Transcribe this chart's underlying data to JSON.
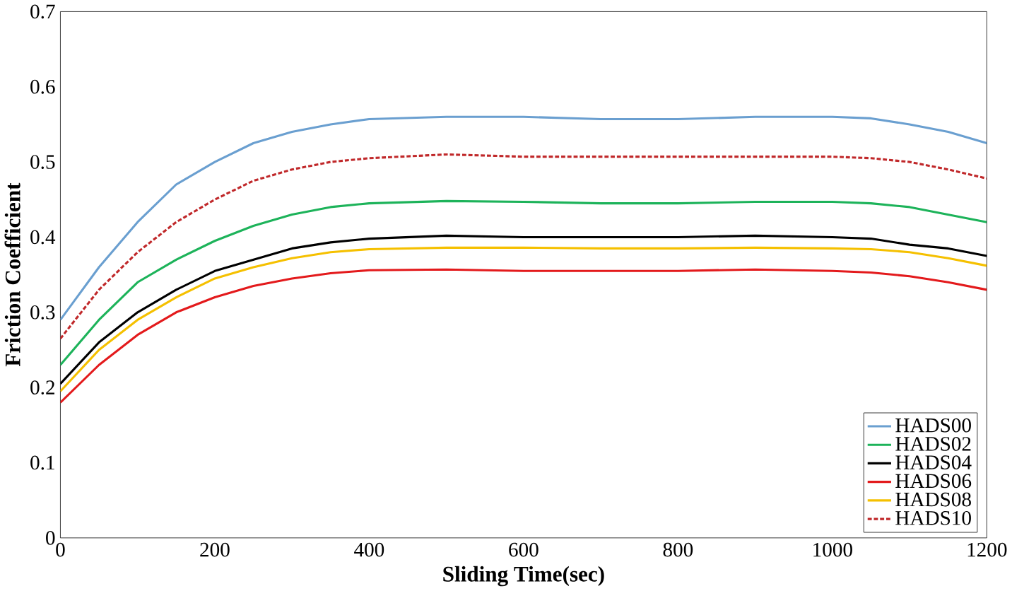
{
  "chart_data": {
    "type": "line",
    "xlabel": "Sliding Time(sec)",
    "ylabel": "Friction Coefficient",
    "x": [
      0,
      50,
      100,
      150,
      200,
      250,
      300,
      350,
      400,
      500,
      600,
      700,
      800,
      900,
      1000,
      1050,
      1100,
      1150,
      1200
    ],
    "series": [
      {
        "name": "HADS00",
        "color": "#6a9fd0",
        "values": [
          0.29,
          0.36,
          0.42,
          0.47,
          0.5,
          0.525,
          0.54,
          0.55,
          0.557,
          0.56,
          0.56,
          0.557,
          0.557,
          0.56,
          0.56,
          0.558,
          0.55,
          0.54,
          0.525
        ]
      },
      {
        "name": "HADS02",
        "color": "#1db35a",
        "values": [
          0.23,
          0.29,
          0.34,
          0.37,
          0.395,
          0.415,
          0.43,
          0.44,
          0.445,
          0.448,
          0.447,
          0.445,
          0.445,
          0.447,
          0.447,
          0.445,
          0.44,
          0.43,
          0.42
        ]
      },
      {
        "name": "HADS04",
        "color": "#000000",
        "values": [
          0.205,
          0.26,
          0.3,
          0.33,
          0.355,
          0.37,
          0.385,
          0.393,
          0.398,
          0.402,
          0.4,
          0.4,
          0.4,
          0.402,
          0.4,
          0.398,
          0.39,
          0.385,
          0.375
        ]
      },
      {
        "name": "HADS06",
        "color": "#e31a1c",
        "values": [
          0.18,
          0.23,
          0.27,
          0.3,
          0.32,
          0.335,
          0.345,
          0.352,
          0.356,
          0.357,
          0.355,
          0.355,
          0.355,
          0.357,
          0.355,
          0.353,
          0.348,
          0.34,
          0.33
        ]
      },
      {
        "name": "HADS08",
        "color": "#f5c000",
        "values": [
          0.195,
          0.25,
          0.29,
          0.32,
          0.345,
          0.36,
          0.372,
          0.38,
          0.384,
          0.386,
          0.386,
          0.385,
          0.385,
          0.386,
          0.385,
          0.384,
          0.38,
          0.372,
          0.362
        ]
      },
      {
        "name": "HADS10",
        "color": "#c0282a",
        "line_style": "dashed",
        "values": [
          0.265,
          0.33,
          0.38,
          0.42,
          0.45,
          0.475,
          0.49,
          0.5,
          0.505,
          0.51,
          0.507,
          0.507,
          0.507,
          0.507,
          0.507,
          0.505,
          0.5,
          0.49,
          0.478
        ]
      }
    ],
    "xlim": [
      0,
      1200
    ],
    "xticks": [
      0,
      200,
      400,
      600,
      800,
      1000,
      1200
    ],
    "ylim": [
      0,
      0.7
    ],
    "yticks": [
      0,
      0.1,
      0.2,
      0.3,
      0.4,
      0.5,
      0.6,
      0.7
    ],
    "legend": "bottom right",
    "grid": false
  }
}
